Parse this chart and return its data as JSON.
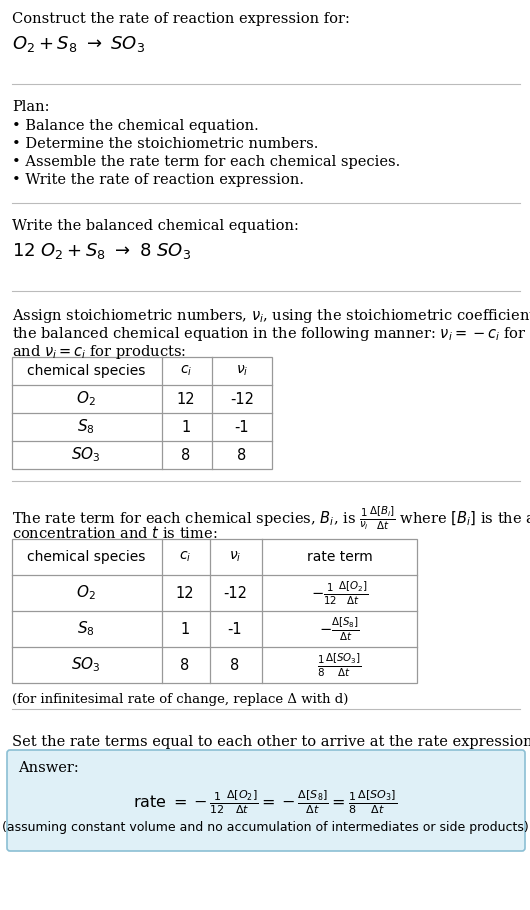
{
  "bg_color": "#ffffff",
  "text_color": "#000000",
  "answer_bg_color": "#dff0f7",
  "answer_border_color": "#8bbfd4",
  "title_line1": "Construct the rate of reaction expression for:",
  "plan_header": "Plan:",
  "plan_items": [
    "• Balance the chemical equation.",
    "• Determine the stoichiometric numbers.",
    "• Assemble the rate term for each chemical species.",
    "• Write the rate of reaction expression."
  ],
  "balanced_header": "Write the balanced chemical equation:",
  "infinitesimal_note": "(for infinitesimal rate of change, replace Δ with d)",
  "set_equal_text": "Set the rate terms equal to each other to arrive at the rate expression:",
  "answer_label": "Answer:",
  "assuming_note": "(assuming constant volume and no accumulation of intermediates or side products)",
  "species_tex": [
    "$O_2$",
    "$S_8$",
    "$SO_3$"
  ],
  "ci_vals": [
    "12",
    "1",
    "8"
  ],
  "ni_vals": [
    "-12",
    "-1",
    "8"
  ],
  "rate_terms": [
    "$-\\frac{1}{12}\\frac{\\Delta[O_2]}{\\Delta t}$",
    "$-\\frac{\\Delta[S_8]}{\\Delta t}$",
    "$\\frac{1}{8}\\frac{\\Delta[SO_3]}{\\Delta t}$"
  ]
}
